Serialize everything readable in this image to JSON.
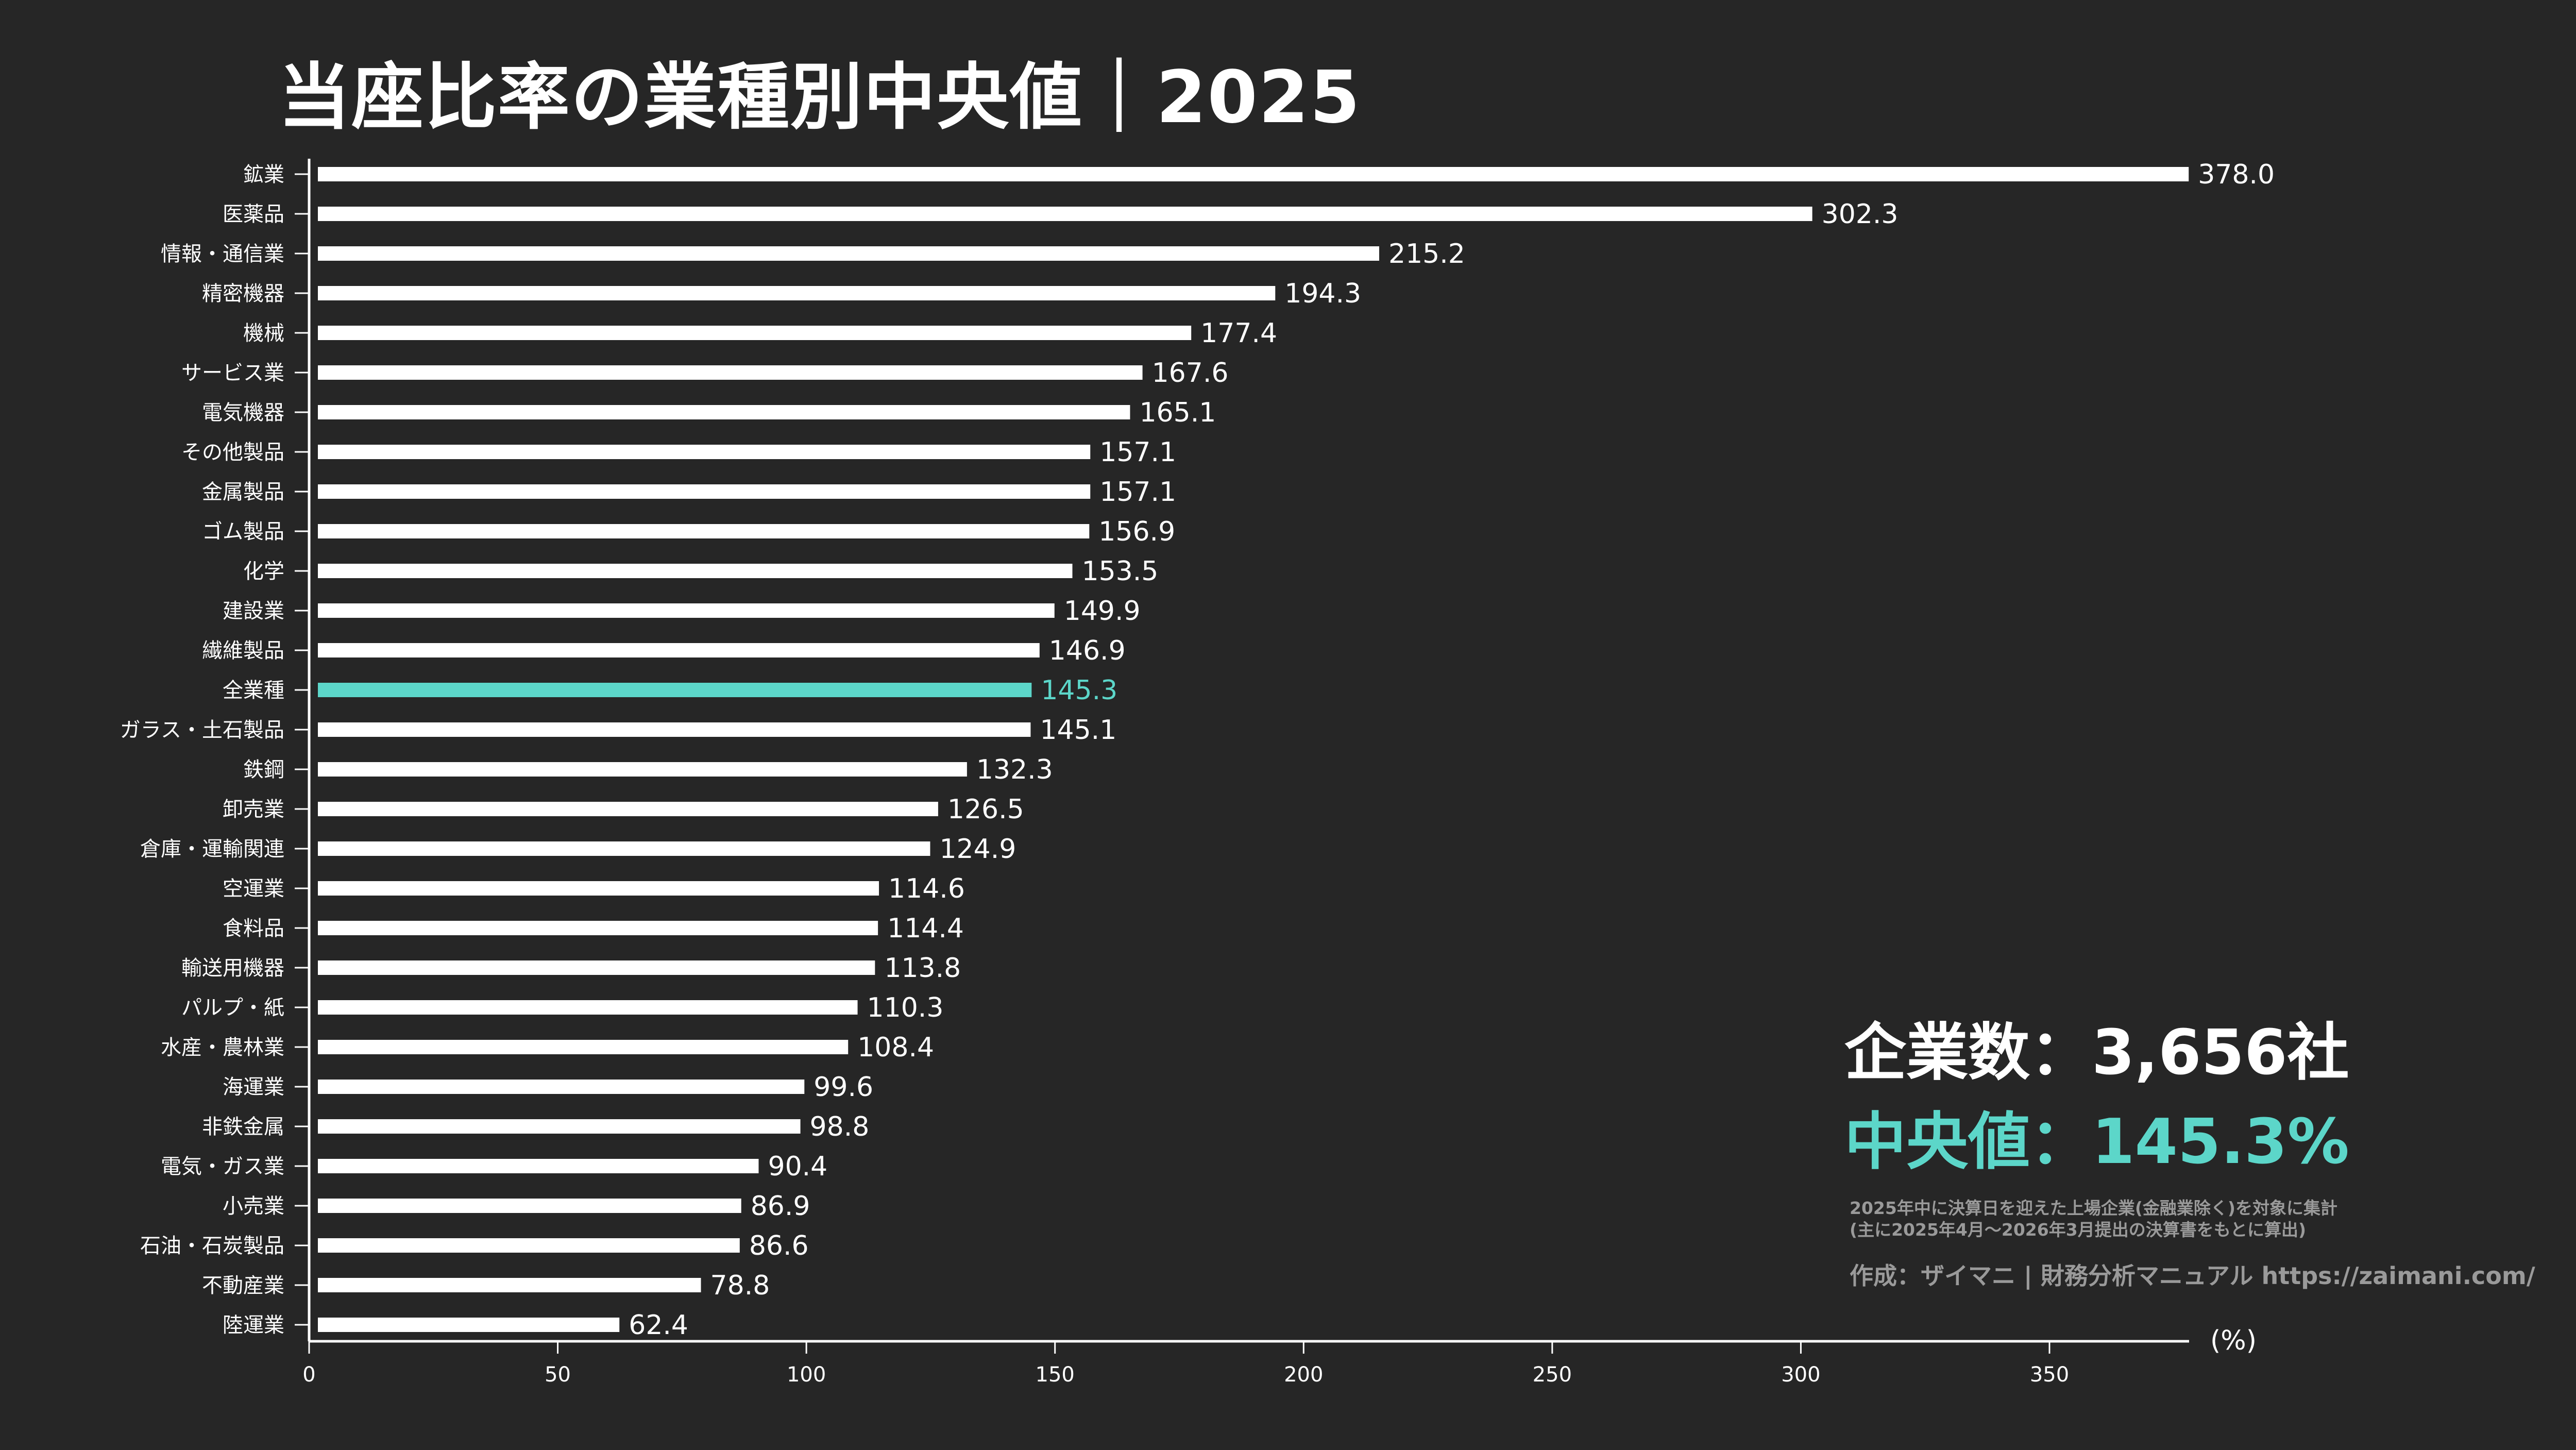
{
  "colors": {
    "background": "#262626",
    "bar": "#ffffff",
    "highlight": "#5cd6c9",
    "note": "#9a9a9a"
  },
  "annotations": {
    "company_count": "企業数：3,656社",
    "median": "中央値：145.3%",
    "note_line1": "2025年中に決算日を迎えた上場企業(金融業除く)を対象に集計",
    "note_line2": "(主に2025年4月～2026年3月提出の決算書をもとに算出)",
    "credit": "作成：ザイマニ | 財務分析マニュアル https://zaimani.com/"
  },
  "chart_data": {
    "type": "bar",
    "orientation": "horizontal",
    "title": "当座比率の業種別中央値｜2025",
    "xlabel": "(%)",
    "ylabel": "",
    "xlim": [
      0,
      378
    ],
    "xticks": [
      0,
      50,
      100,
      150,
      200,
      250,
      300,
      350
    ],
    "grid": false,
    "highlight_category": "全業種",
    "categories": [
      "鉱業",
      "医薬品",
      "情報・通信業",
      "精密機器",
      "機械",
      "サービス業",
      "電気機器",
      "その他製品",
      "金属製品",
      "ゴム製品",
      "化学",
      "建設業",
      "繊維製品",
      "全業種",
      "ガラス・土石製品",
      "鉄鋼",
      "卸売業",
      "倉庫・運輸関連",
      "空運業",
      "食料品",
      "輸送用機器",
      "パルプ・紙",
      "水産・農林業",
      "海運業",
      "非鉄金属",
      "電気・ガス業",
      "小売業",
      "石油・石炭製品",
      "不動産業",
      "陸運業"
    ],
    "values": [
      378.0,
      302.3,
      215.2,
      194.3,
      177.4,
      167.6,
      165.1,
      157.1,
      157.1,
      156.9,
      153.5,
      149.9,
      146.9,
      145.3,
      145.1,
      132.3,
      126.5,
      124.9,
      114.6,
      114.4,
      113.8,
      110.3,
      108.4,
      99.6,
      98.8,
      90.4,
      86.9,
      86.6,
      78.8,
      62.4
    ]
  }
}
